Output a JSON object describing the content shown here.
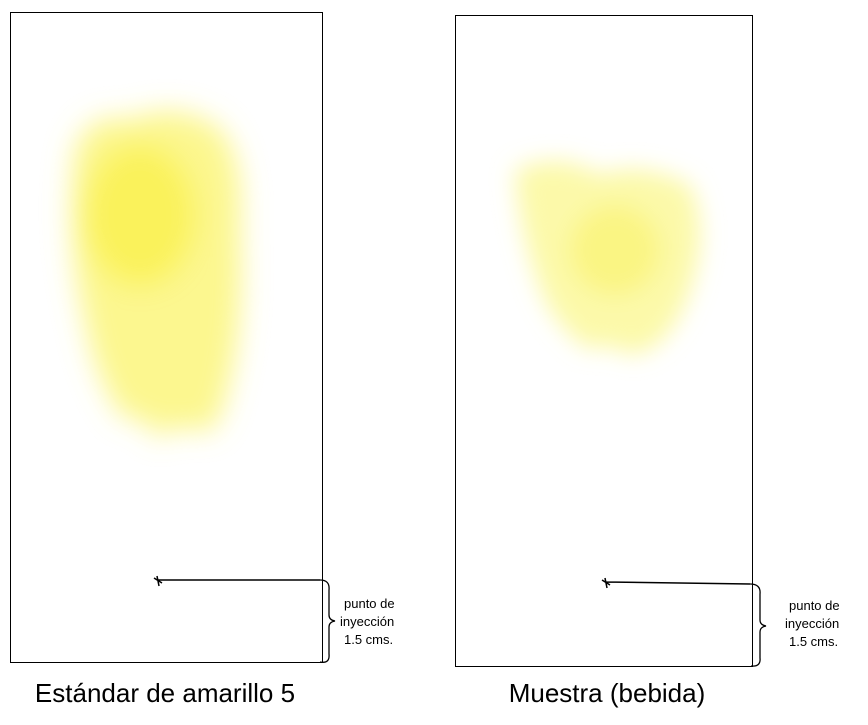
{
  "panels": [
    {
      "caption": "Estándar de amarillo 5",
      "label_lines": [
        "punto de",
        "inyección",
        "1.5 cms."
      ]
    },
    {
      "caption": "Muestra (bebida)",
      "label_lines": [
        "punto de",
        "inyección",
        "1.5 cms."
      ]
    }
  ]
}
